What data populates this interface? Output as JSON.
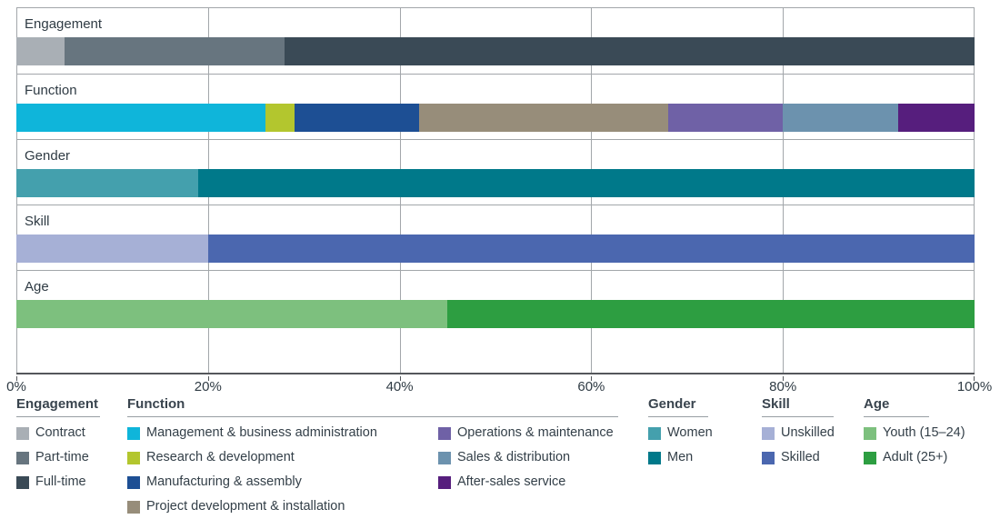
{
  "chart_data": {
    "type": "bar",
    "variant": "horizontal-stacked-100pct",
    "title": "",
    "xlabel": "",
    "ylabel": "",
    "xlim": [
      0,
      100
    ],
    "unit": "%",
    "x_ticks": [
      "0%",
      "20%",
      "40%",
      "60%",
      "80%",
      "100%"
    ],
    "grid": "vertical",
    "legend_position": "bottom",
    "rows": [
      {
        "category": "Engagement",
        "segments": [
          {
            "label": "Contract",
            "value": 5
          },
          {
            "label": "Part-time",
            "value": 23
          },
          {
            "label": "Full-time",
            "value": 72
          }
        ]
      },
      {
        "category": "Function",
        "segments": [
          {
            "label": "Management & business administration",
            "value": 26
          },
          {
            "label": "Research & development",
            "value": 3
          },
          {
            "label": "Manufacturing & assembly",
            "value": 13
          },
          {
            "label": "Project development & installation",
            "value": 26
          },
          {
            "label": "Operations & maintenance",
            "value": 12
          },
          {
            "label": "Sales & distribution",
            "value": 12
          },
          {
            "label": "After-sales service",
            "value": 8
          }
        ]
      },
      {
        "category": "Gender",
        "segments": [
          {
            "label": "Women",
            "value": 19
          },
          {
            "label": "Men",
            "value": 81
          }
        ]
      },
      {
        "category": "Skill",
        "segments": [
          {
            "label": "Unskilled",
            "value": 20
          },
          {
            "label": "Skilled",
            "value": 80
          }
        ]
      },
      {
        "category": "Age",
        "segments": [
          {
            "label": "Youth (15–24)",
            "value": 45
          },
          {
            "label": "Adult (25+)",
            "value": 55
          }
        ]
      }
    ]
  },
  "colors": {
    "Contract": "#a9afb5",
    "Part-time": "#67757f",
    "Full-time": "#3a4a56",
    "Management & business administration": "#0fb5da",
    "Research & development": "#b3c62e",
    "Manufacturing & assembly": "#1d4f94",
    "Project development & installation": "#978d7a",
    "Operations & maintenance": "#6f61a6",
    "Sales & distribution": "#6c92ae",
    "After-sales service": "#561e7d",
    "Women": "#44a0ad",
    "Men": "#00798a",
    "Unskilled": "#a6b0d6",
    "Skilled": "#4b67af",
    "Youth (15–24)": "#7dc07e",
    "Adult (25+)": "#2d9e41"
  },
  "legend": {
    "groups": [
      {
        "title": "Engagement",
        "columns": [
          [
            "Contract",
            "Part-time",
            "Full-time"
          ]
        ]
      },
      {
        "title": "Function",
        "columns": [
          [
            "Management & business administration",
            "Research & development",
            "Manufacturing & assembly",
            "Project development & installation"
          ],
          [
            "Operations & maintenance",
            "Sales & distribution",
            "After-sales service"
          ]
        ]
      },
      {
        "title": "Gender",
        "columns": [
          [
            "Women",
            "Men"
          ]
        ]
      },
      {
        "title": "Skill",
        "columns": [
          [
            "Unskilled",
            "Skilled"
          ]
        ]
      },
      {
        "title": "Age",
        "columns": [
          [
            "Youth (15–24)",
            "Adult (25+)"
          ]
        ]
      }
    ]
  }
}
